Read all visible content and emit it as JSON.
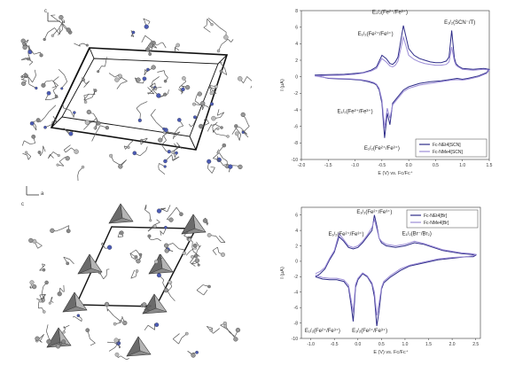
{
  "structure_top": {
    "axis_letters": [
      "c",
      "a"
    ]
  },
  "structure_bottom": {
    "axis_letters": [
      "c",
      "a"
    ]
  },
  "chart_data": [
    {
      "type": "line",
      "xlabel": "E (V) vs. Fc/Fc⁺",
      "ylabel": "I (μA)",
      "x_ticks": [
        "-2.0",
        "-1.5",
        "-1.0",
        "-0.5",
        "0.0",
        "0.5",
        "1.0",
        "1.5"
      ],
      "y_ticks": [
        "8",
        "6",
        "4",
        "2",
        "0",
        "-2",
        "-4",
        "-6",
        "-8",
        "-10"
      ],
      "xlim": [
        -2.0,
        1.5
      ],
      "ylim": [
        -10,
        8
      ],
      "legend_position": "bottom-right",
      "annotations": [
        {
          "text": "E₁/₂(Fe²⁺/Fe³⁺)",
          "x": -0.35,
          "y": 7.6
        },
        {
          "text": "E₁/₂(Fe²⁺/Fe³⁺)",
          "x": -0.62,
          "y": 5.0
        },
        {
          "text": "E₁/₂(SCN⁻/T)",
          "x": 0.95,
          "y": 6.4
        },
        {
          "text": "E₁/₂(Fe²⁺/Fe³⁺)",
          "x": -1.0,
          "y": -4.4
        },
        {
          "text": "E₁/₂(Fe²⁺/Fe³⁺)",
          "x": -0.5,
          "y": -8.8
        }
      ],
      "series": [
        {
          "name": "Fc-NEt4[SCN]",
          "color": "#2d2b88",
          "x": [
            -1.75,
            -1.5,
            -1.2,
            -1.0,
            -0.85,
            -0.7,
            -0.6,
            -0.5,
            -0.42,
            -0.35,
            -0.3,
            -0.25,
            -0.2,
            -0.1,
            0.0,
            0.1,
            0.2,
            0.3,
            0.4,
            0.5,
            0.6,
            0.7,
            0.75,
            0.8,
            0.85,
            0.88,
            0.92,
            1.0,
            1.2,
            1.4,
            1.5,
            1.45,
            1.3,
            1.1,
            1.0,
            0.9,
            0.8,
            0.6,
            0.4,
            0.2,
            0.1,
            0.0,
            -0.1,
            -0.2,
            -0.3,
            -0.35,
            -0.4,
            -0.45,
            -0.5,
            -0.55,
            -0.6,
            -0.65,
            -0.75,
            -0.9,
            -1.1,
            -1.3,
            -1.5,
            -1.75
          ],
          "y": [
            0.2,
            0.25,
            0.3,
            0.4,
            0.5,
            0.8,
            1.2,
            2.6,
            2.2,
            1.6,
            1.5,
            1.8,
            2.4,
            6.2,
            3.4,
            2.6,
            2.2,
            2.0,
            1.8,
            1.7,
            1.7,
            1.9,
            2.4,
            5.6,
            2.3,
            1.6,
            1.3,
            1.0,
            0.9,
            1.0,
            0.9,
            0.5,
            0.1,
            -0.2,
            -0.3,
            -0.2,
            -0.3,
            -0.5,
            -0.6,
            -0.8,
            -1.0,
            -1.2,
            -1.6,
            -2.4,
            -3.2,
            -5.8,
            -4.4,
            -7.4,
            -3.2,
            -1.6,
            -1.0,
            -0.8,
            -0.6,
            -0.4,
            -0.3,
            -0.25,
            -0.2,
            0.2
          ]
        },
        {
          "name": "Fc-NMe4[SCN]",
          "color": "#9b8cd6",
          "x": [
            -1.75,
            -1.5,
            -1.2,
            -1.0,
            -0.85,
            -0.7,
            -0.6,
            -0.5,
            -0.42,
            -0.35,
            -0.3,
            -0.25,
            -0.2,
            -0.1,
            0.0,
            0.1,
            0.2,
            0.3,
            0.4,
            0.5,
            0.6,
            0.7,
            0.75,
            0.8,
            0.85,
            0.88,
            0.92,
            1.0,
            1.2,
            1.4,
            1.5,
            1.45,
            1.3,
            1.1,
            1.0,
            0.9,
            0.8,
            0.6,
            0.4,
            0.2,
            0.1,
            0.0,
            -0.1,
            -0.2,
            -0.3,
            -0.35,
            -0.4,
            -0.45,
            -0.5,
            -0.55,
            -0.6,
            -0.65,
            -0.75,
            -0.9,
            -1.1,
            -1.3,
            -1.5,
            -1.75
          ],
          "y": [
            0.1,
            0.15,
            0.2,
            0.3,
            0.45,
            0.7,
            1.0,
            2.2,
            1.8,
            1.3,
            1.2,
            1.4,
            1.9,
            4.8,
            2.6,
            2.1,
            1.8,
            1.6,
            1.5,
            1.4,
            1.4,
            1.5,
            1.8,
            3.6,
            1.9,
            1.4,
            1.2,
            0.9,
            0.8,
            0.9,
            0.8,
            0.4,
            0.0,
            -0.3,
            -0.4,
            -0.35,
            -0.4,
            -0.6,
            -0.8,
            -1.0,
            -1.2,
            -1.4,
            -1.8,
            -2.6,
            -3.4,
            -5.0,
            -3.8,
            -6.2,
            -2.8,
            -1.4,
            -0.9,
            -0.7,
            -0.5,
            -0.35,
            -0.25,
            -0.2,
            -0.15,
            0.1
          ]
        }
      ]
    },
    {
      "type": "line",
      "xlabel": "E (V) vs. Fc/Fc⁺",
      "ylabel": "I (μA)",
      "x_ticks": [
        "-1.0",
        "-0.5",
        "0.0",
        "0.5",
        "1.0",
        "1.5",
        "2.0",
        "2.5"
      ],
      "y_ticks": [
        "6",
        "4",
        "2",
        "0",
        "-2",
        "-4",
        "-6",
        "-8",
        "-10"
      ],
      "xlim": [
        -1.2,
        2.6
      ],
      "ylim": [
        -10,
        7
      ],
      "legend_position": "top-right",
      "annotations": [
        {
          "text": "E₁/₂(Fe²⁺/Fe³⁺)",
          "x": 0.35,
          "y": 6.2
        },
        {
          "text": "E₁/₂(Fe²⁺/Fe³⁺)",
          "x": -0.25,
          "y": 3.3
        },
        {
          "text": "E₁/₂(Br⁻/Br₂)",
          "x": 1.25,
          "y": 3.4
        },
        {
          "text": "E₁/₂(Fe²⁺/Fe³⁺)",
          "x": -0.75,
          "y": -9.2
        },
        {
          "text": "E₁/₂(Fe²⁺/Fe³⁺)",
          "x": 0.25,
          "y": -9.2
        }
      ],
      "series": [
        {
          "name": "Fc-NEt4[Br]",
          "color": "#2d2b88",
          "x": [
            -0.9,
            -0.8,
            -0.7,
            -0.6,
            -0.5,
            -0.4,
            -0.3,
            -0.2,
            -0.1,
            0.0,
            0.1,
            0.2,
            0.3,
            0.35,
            0.4,
            0.45,
            0.5,
            0.6,
            0.8,
            1.0,
            1.2,
            1.4,
            1.6,
            1.8,
            2.0,
            2.2,
            2.4,
            2.5,
            2.45,
            2.3,
            2.0,
            1.7,
            1.4,
            1.1,
            0.9,
            0.7,
            0.55,
            0.5,
            0.45,
            0.4,
            0.35,
            0.3,
            0.2,
            0.1,
            0.0,
            -0.05,
            -0.1,
            -0.15,
            -0.2,
            -0.3,
            -0.45,
            -0.6,
            -0.75,
            -0.9
          ],
          "y": [
            -2.0,
            -1.6,
            -1.0,
            0.2,
            1.2,
            3.2,
            2.6,
            1.8,
            1.6,
            1.8,
            2.4,
            3.2,
            4.0,
            6.0,
            4.6,
            3.0,
            2.4,
            2.0,
            1.8,
            2.0,
            2.4,
            2.2,
            1.8,
            1.4,
            1.2,
            1.0,
            0.9,
            0.8,
            0.6,
            0.6,
            0.4,
            0.2,
            -0.2,
            -0.6,
            -1.2,
            -2.0,
            -2.8,
            -3.6,
            -6.4,
            -8.4,
            -4.6,
            -3.0,
            -2.0,
            -1.6,
            -2.4,
            -3.4,
            -7.8,
            -5.4,
            -3.4,
            -2.6,
            -2.4,
            -2.4,
            -2.3,
            -2.0
          ]
        },
        {
          "name": "Fc-NMe4[Br]",
          "color": "#9b8cd6",
          "x": [
            -0.9,
            -0.8,
            -0.7,
            -0.6,
            -0.5,
            -0.4,
            -0.3,
            -0.2,
            -0.1,
            0.0,
            0.1,
            0.2,
            0.3,
            0.35,
            0.4,
            0.45,
            0.5,
            0.6,
            0.8,
            1.0,
            1.2,
            1.4,
            1.6,
            1.8,
            2.0,
            2.2,
            2.4,
            2.5,
            2.45,
            2.3,
            2.0,
            1.7,
            1.4,
            1.1,
            0.9,
            0.7,
            0.55,
            0.5,
            0.45,
            0.4,
            0.35,
            0.3,
            0.2,
            0.1,
            0.0,
            -0.05,
            -0.1,
            -0.15,
            -0.2,
            -0.3,
            -0.45,
            -0.6,
            -0.75,
            -0.9
          ],
          "y": [
            -1.6,
            -1.3,
            -0.8,
            0.4,
            1.4,
            3.6,
            2.8,
            2.0,
            1.8,
            2.0,
            2.6,
            3.4,
            4.4,
            5.4,
            4.2,
            3.0,
            2.6,
            2.2,
            2.0,
            2.2,
            2.6,
            2.3,
            1.9,
            1.5,
            1.3,
            1.1,
            1.0,
            0.9,
            0.7,
            0.6,
            0.5,
            0.3,
            -0.1,
            -0.5,
            -1.0,
            -1.8,
            -2.6,
            -3.4,
            -5.4,
            -7.0,
            -4.0,
            -2.8,
            -1.9,
            -1.5,
            -2.2,
            -3.0,
            -6.6,
            -4.8,
            -3.1,
            -2.4,
            -2.2,
            -2.2,
            -2.1,
            -1.8
          ]
        }
      ]
    }
  ]
}
